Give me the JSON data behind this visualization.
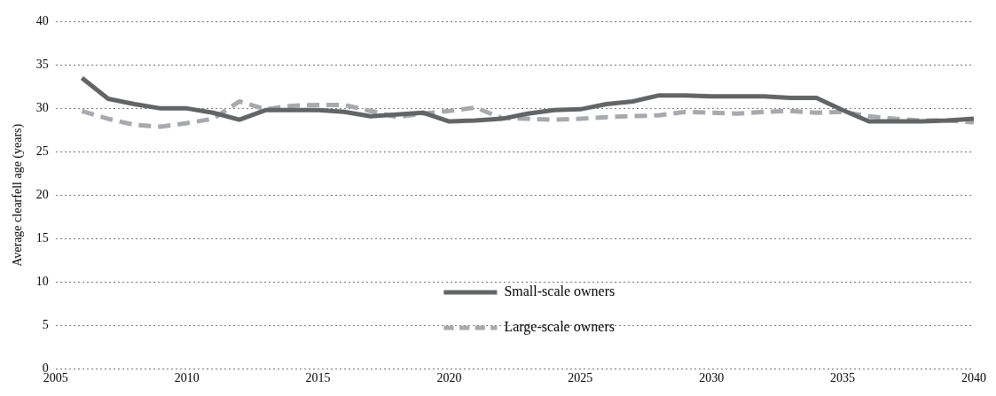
{
  "chart_data": {
    "type": "line",
    "ylabel": "Average clearfell age (years)",
    "x": [
      2006,
      2007,
      2008,
      2009,
      2010,
      2011,
      2012,
      2013,
      2014,
      2015,
      2016,
      2017,
      2018,
      2019,
      2020,
      2021,
      2022,
      2023,
      2024,
      2025,
      2026,
      2027,
      2028,
      2029,
      2030,
      2031,
      2032,
      2033,
      2034,
      2035,
      2036,
      2037,
      2038,
      2039,
      2040
    ],
    "series": [
      {
        "name": "Small-scale owners",
        "color": "#636466",
        "line_style": "solid",
        "values": [
          33.5,
          31.1,
          30.5,
          30.0,
          30.0,
          29.5,
          28.7,
          29.8,
          29.8,
          29.8,
          29.6,
          29.1,
          29.3,
          29.5,
          28.5,
          28.6,
          28.8,
          29.4,
          29.8,
          29.9,
          30.5,
          30.8,
          31.5,
          31.5,
          31.4,
          31.4,
          31.4,
          31.2,
          31.2,
          29.8,
          28.5,
          28.5,
          28.5,
          28.6,
          28.8
        ]
      },
      {
        "name": "Large-scale owners",
        "color": "#a7a9ac",
        "line_style": "dashed",
        "values": [
          29.7,
          28.8,
          28.1,
          27.9,
          28.3,
          28.8,
          30.8,
          29.9,
          30.3,
          30.4,
          30.4,
          29.7,
          29.0,
          29.4,
          29.7,
          30.1,
          28.9,
          28.8,
          28.7,
          28.8,
          29.0,
          29.1,
          29.2,
          29.6,
          29.5,
          29.4,
          29.6,
          29.7,
          29.5,
          29.6,
          29.1,
          28.8,
          28.6,
          28.6,
          28.4
        ]
      }
    ],
    "xlim": [
      2005,
      2040
    ],
    "xticks": [
      2005,
      2010,
      2015,
      2020,
      2025,
      2030,
      2035,
      2040
    ],
    "ylim": [
      0,
      40
    ],
    "yticks": [
      0,
      5,
      10,
      15,
      20,
      25,
      30,
      35,
      40
    ],
    "grid": "y",
    "legend": "bottom",
    "marker": "none"
  }
}
